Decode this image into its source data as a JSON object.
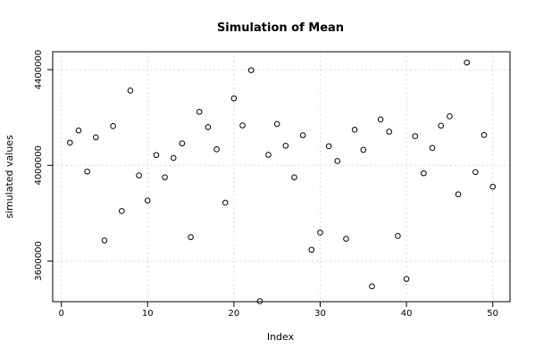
{
  "chart_data": {
    "type": "scatter",
    "title": "Simulation of Mean",
    "xlabel": "Index",
    "ylabel": "simulated values",
    "xlim": [
      -1,
      52
    ],
    "ylim": [
      3430000,
      4475000
    ],
    "grid": true,
    "x_ticks": [
      0,
      10,
      20,
      30,
      40,
      50
    ],
    "x_tick_labels": [
      "0",
      "10",
      "20",
      "30",
      "40",
      "50"
    ],
    "y_ticks": [
      3600000,
      4000000,
      4400000
    ],
    "y_tick_labels": [
      "3600000",
      "4000000",
      "4400000"
    ],
    "x": [
      1,
      2,
      3,
      4,
      5,
      6,
      7,
      8,
      9,
      10,
      11,
      12,
      13,
      14,
      15,
      16,
      17,
      18,
      19,
      20,
      21,
      22,
      23,
      24,
      25,
      26,
      27,
      28,
      29,
      30,
      31,
      32,
      33,
      34,
      35,
      36,
      37,
      38,
      39,
      40,
      41,
      42,
      43,
      44,
      45,
      46,
      47,
      48,
      49,
      50
    ],
    "y": [
      4095000,
      4146000,
      3974000,
      4117000,
      3686000,
      4164000,
      3809000,
      4313000,
      3958000,
      3853000,
      4043000,
      3950000,
      4031000,
      4092000,
      3700000,
      4224000,
      4160000,
      4067000,
      3844000,
      4280000,
      4167000,
      4398000,
      3432000,
      4044000,
      4173000,
      4082000,
      3950000,
      4126000,
      3647000,
      3719000,
      4080000,
      4018000,
      3693000,
      4149000,
      4065000,
      3494000,
      4192000,
      4141000,
      3705000,
      3525000,
      4122000,
      3967000,
      4073000,
      4166000,
      4205000,
      3879000,
      4430000,
      3972000,
      4127000,
      3911000
    ]
  }
}
